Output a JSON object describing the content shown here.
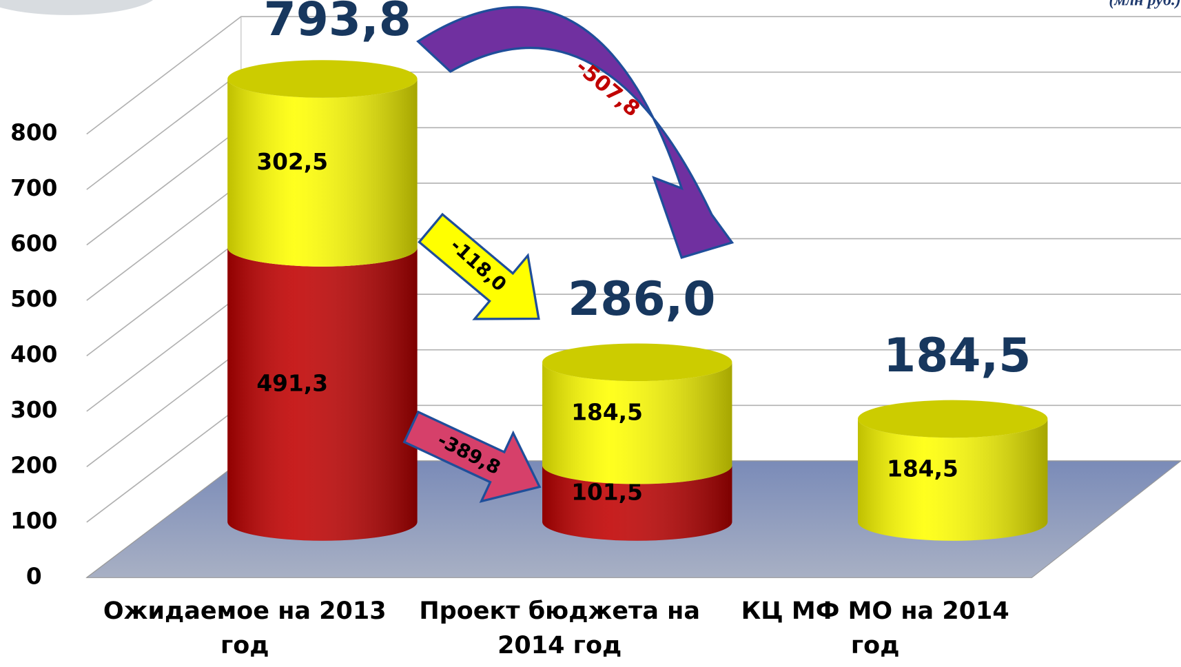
{
  "chart_data": {
    "type": "stacked-cylinder",
    "unit_label": "(млн руб.)",
    "categories": [
      "Ожидаемое на 2013 год",
      "Проект бюджета на 2014 год",
      "КЦ МФ МО на 2014 год"
    ],
    "series": [
      {
        "color": "#c00000",
        "values": [
          491.3,
          101.5,
          null
        ],
        "value_labels": [
          "491,3",
          "101,5",
          null
        ]
      },
      {
        "color": "#ffff00",
        "values": [
          302.5,
          184.5,
          184.5
        ],
        "value_labels": [
          "302,5",
          "184,5",
          "184,5"
        ]
      }
    ],
    "total_labels": [
      "793,8",
      "286,0",
      "184,5"
    ],
    "change_labels": [
      "-118,0",
      "-389,8",
      "-507,8"
    ],
    "ylim": [
      0,
      800
    ],
    "yticks": [
      0,
      100,
      200,
      300,
      400,
      500,
      600,
      700,
      800
    ],
    "grid": true
  }
}
